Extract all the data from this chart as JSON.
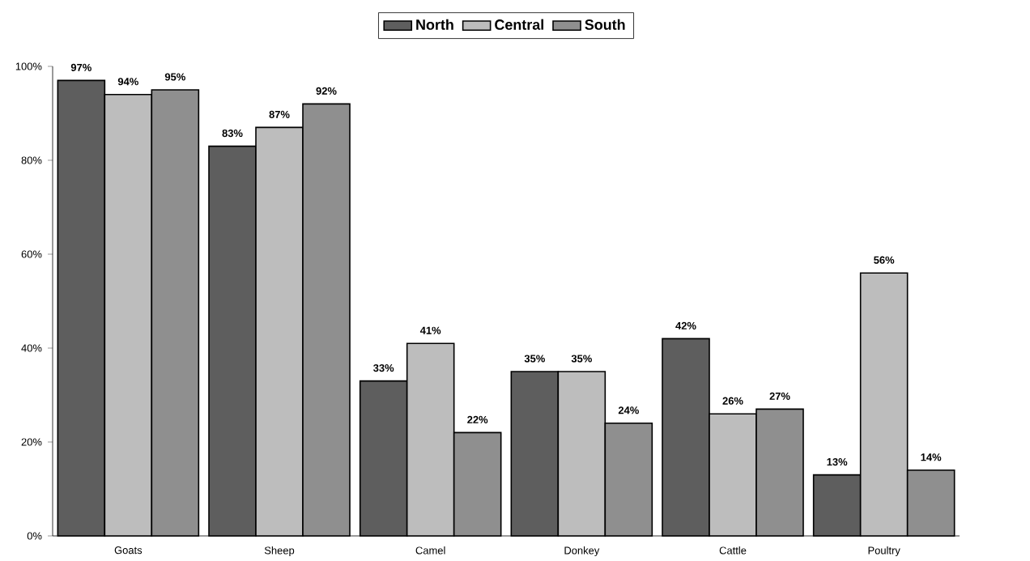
{
  "chart_data": {
    "type": "bar",
    "categories": [
      "Goats",
      "Sheep",
      "Camel",
      "Donkey",
      "Cattle",
      "Poultry"
    ],
    "series": [
      {
        "name": "North",
        "color": "#5e5e5e",
        "values": [
          97,
          83,
          33,
          35,
          42,
          13
        ],
        "value_labels": [
          "97%",
          "83%",
          "33%",
          "35%",
          "42%",
          "13%"
        ]
      },
      {
        "name": "Central",
        "color": "#bdbdbd",
        "values": [
          94,
          87,
          41,
          35,
          26,
          56
        ],
        "value_labels": [
          "94%",
          "87%",
          "41%",
          "35%",
          "26%",
          "56%"
        ]
      },
      {
        "name": "South",
        "color": "#8f8f8f",
        "values": [
          95,
          92,
          22,
          24,
          27,
          14
        ],
        "value_labels": [
          "95%",
          "92%",
          "22%",
          "24%",
          "27%",
          "14%"
        ]
      }
    ],
    "ylim": [
      0,
      100
    ],
    "yticks": [
      {
        "value": 0,
        "label": "0%"
      },
      {
        "value": 20,
        "label": "20%"
      },
      {
        "value": 40,
        "label": "40%"
      },
      {
        "value": 60,
        "label": "60%"
      },
      {
        "value": 80,
        "label": "80%"
      },
      {
        "value": 100,
        "label": "100%"
      }
    ],
    "legend": "top"
  }
}
